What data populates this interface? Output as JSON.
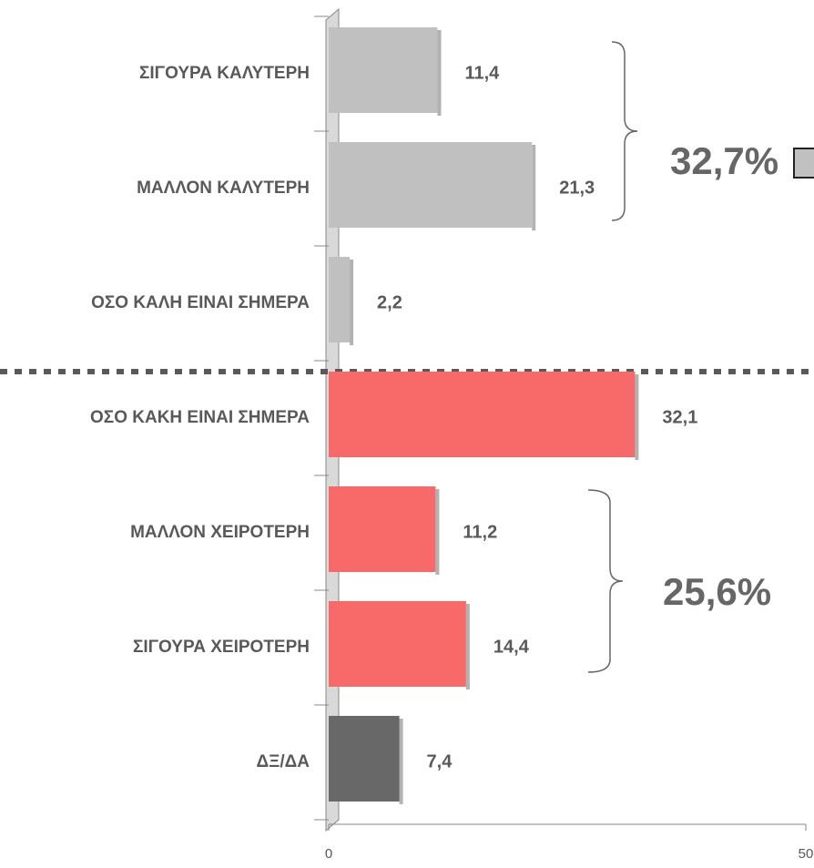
{
  "chart_data": {
    "type": "hbar",
    "categories": [
      "ΣΙΓΟΥΡΑ ΚΑΛΥΤΕΡΗ",
      "ΜΑΛΛΟΝ ΚΑΛΥΤΕΡΗ",
      "ΟΣΟ ΚΑΛΗ ΕΙΝΑΙ ΣΗΜΕΡΑ",
      "ΟΣΟ ΚΑΚΗ ΕΙΝΑΙ ΣΗΜΕΡΑ",
      "ΜΑΛΛΟΝ ΧΕΙΡΟΤΕΡΗ",
      "ΣΙΓΟΥΡΑ ΧΕΙΡΟΤΕΡΗ",
      "ΔΞ/ΔΑ"
    ],
    "values": [
      11.4,
      21.3,
      2.2,
      32.1,
      11.2,
      14.4,
      7.4
    ],
    "value_labels": [
      "11,4",
      "21,3",
      "2,2",
      "32,1",
      "11,2",
      "14,4",
      "7,4"
    ],
    "colors": [
      "#c0c0c0",
      "#c0c0c0",
      "#c0c0c0",
      "#f86a6a",
      "#f86a6a",
      "#f86a6a",
      "#686868"
    ],
    "xlim": [
      0,
      50
    ],
    "xticks": [
      0,
      50
    ],
    "annotations": [
      {
        "text": "32,7%"
      },
      {
        "text": "25,6%"
      }
    ]
  }
}
